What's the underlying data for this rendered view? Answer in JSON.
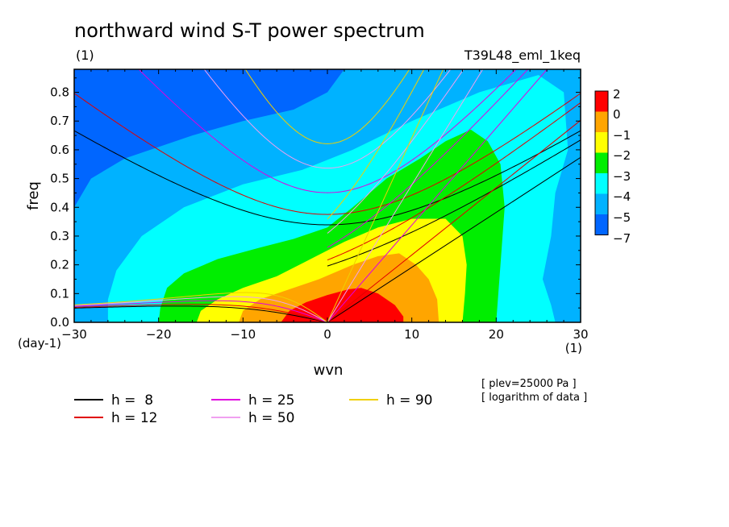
{
  "title": "northward wind S-T power spectrum",
  "subtitle_left": "(1)",
  "subtitle_right": "T39L48_eml_1keq",
  "notes": [
    "[ plev=25000 Pa ]",
    "[ logarithm of data ]"
  ],
  "colors": {
    "levels": [
      "#ff0000",
      "#ffa500",
      "#ffff00",
      "#00ee00",
      "#00ffff",
      "#00b2ff",
      "#0066ff"
    ],
    "h8": "#000000",
    "h12": "#e00000",
    "h25": "#e000e0",
    "h50": "#f0a0f0",
    "h90": "#f0d000"
  },
  "chart_data": {
    "type": "heatmap",
    "title": "northward wind S-T power spectrum",
    "xlabel": "wvn",
    "ylabel": "freq",
    "x_unit": "(1)",
    "y_unit": "(day-1)",
    "xlim": [
      -30,
      30
    ],
    "ylim": [
      0,
      0.88
    ],
    "xticks": [
      -30,
      -20,
      -10,
      0,
      10,
      20,
      30
    ],
    "yticks": [
      0.0,
      0.1,
      0.2,
      0.3,
      0.4,
      0.5,
      0.6,
      0.7,
      0.8
    ],
    "ytick_labels": [
      "0.0",
      "0.1",
      "0.2",
      "0.3",
      "0.4",
      "0.5",
      "0.6",
      "0.7",
      "0.8"
    ],
    "colorbar": {
      "labels": [
        "2",
        "0",
        "−1",
        "−2",
        "−3",
        "−4",
        "−5",
        "−7"
      ],
      "colors": [
        "#ff0000",
        "#ffa500",
        "#ffff00",
        "#00ee00",
        "#00ffff",
        "#00b2ff",
        "#0066ff"
      ]
    },
    "contour_regions": [
      {
        "level": "0 to 2",
        "color": "#ff0000",
        "boundary": [
          [
            -5.5,
            0
          ],
          [
            -4.5,
            0.04
          ],
          [
            -2.5,
            0.07
          ],
          [
            0,
            0.095
          ],
          [
            2.5,
            0.115
          ],
          [
            4,
            0.12
          ],
          [
            6,
            0.1
          ],
          [
            8,
            0.06
          ],
          [
            9,
            0.02
          ],
          [
            9,
            0
          ]
        ]
      },
      {
        "level": "-1 to 0",
        "color": "#ffa500",
        "boundary": [
          [
            -10.5,
            0
          ],
          [
            -10,
            0.04
          ],
          [
            -8,
            0.08
          ],
          [
            -5,
            0.11
          ],
          [
            -1,
            0.15
          ],
          [
            3,
            0.2
          ],
          [
            6,
            0.23
          ],
          [
            8.5,
            0.24
          ],
          [
            10.5,
            0.2
          ],
          [
            12,
            0.15
          ],
          [
            13,
            0.08
          ],
          [
            13.2,
            0
          ]
        ]
      },
      {
        "level": "-2 to -1",
        "color": "#ffff00",
        "boundary": [
          [
            -15.5,
            0
          ],
          [
            -15,
            0.04
          ],
          [
            -13,
            0.08
          ],
          [
            -10,
            0.12
          ],
          [
            -6,
            0.16
          ],
          [
            -2,
            0.22
          ],
          [
            2,
            0.28
          ],
          [
            6,
            0.33
          ],
          [
            10,
            0.36
          ],
          [
            14,
            0.36
          ],
          [
            16,
            0.3
          ],
          [
            16.5,
            0.2
          ],
          [
            16.3,
            0.1
          ],
          [
            16,
            0
          ]
        ]
      },
      {
        "level": "-3 to -2",
        "color": "#00ee00",
        "boundary": [
          [
            -20,
            0
          ],
          [
            -19.8,
            0.05
          ],
          [
            -19,
            0.12
          ],
          [
            -17,
            0.17
          ],
          [
            -13,
            0.22
          ],
          [
            -8,
            0.26
          ],
          [
            -4,
            0.29
          ],
          [
            0,
            0.33
          ],
          [
            3,
            0.4
          ],
          [
            7,
            0.5
          ],
          [
            11,
            0.57
          ],
          [
            14,
            0.63
          ],
          [
            17,
            0.67
          ],
          [
            19,
            0.63
          ],
          [
            20.5,
            0.55
          ],
          [
            21,
            0.4
          ],
          [
            20.5,
            0.2
          ],
          [
            20,
            0
          ]
        ]
      },
      {
        "level": "-4 to -3",
        "color": "#00ffff",
        "boundary": [
          [
            -26,
            0
          ],
          [
            -26,
            0.08
          ],
          [
            -25,
            0.18
          ],
          [
            -22,
            0.3
          ],
          [
            -17,
            0.4
          ],
          [
            -10,
            0.48
          ],
          [
            -3,
            0.53
          ],
          [
            3,
            0.6
          ],
          [
            10,
            0.7
          ],
          [
            18,
            0.8
          ],
          [
            25,
            0.86
          ],
          [
            28,
            0.8
          ],
          [
            28.5,
            0.6
          ],
          [
            27,
            0.45
          ],
          [
            26.5,
            0.3
          ],
          [
            25.5,
            0.15
          ],
          [
            26.5,
            0.06
          ],
          [
            27,
            0
          ]
        ]
      },
      {
        "level": "-5 to -4",
        "color": "#00b2ff",
        "boundary": [
          [
            -30,
            0
          ],
          [
            -30,
            0.4
          ],
          [
            -28,
            0.5
          ],
          [
            -24,
            0.57
          ],
          [
            -16,
            0.65
          ],
          [
            -10,
            0.7
          ],
          [
            -4,
            0.74
          ],
          [
            0,
            0.8
          ],
          [
            2,
            0.88
          ],
          [
            30,
            0.88
          ],
          [
            30,
            0
          ]
        ]
      }
    ],
    "dispersion_curve_sets": [
      {
        "name": "h = 8",
        "h": 8,
        "color": "#000000"
      },
      {
        "name": "h = 12",
        "h": 12,
        "color": "#e00000"
      },
      {
        "name": "h = 25",
        "h": 25,
        "color": "#e000e0"
      },
      {
        "name": "h = 50",
        "h": 50,
        "color": "#f0a0f0"
      },
      {
        "name": "h = 90",
        "h": 90,
        "color": "#f0d000"
      }
    ]
  },
  "legend": [
    {
      "label": "h =  8",
      "color": "#000000"
    },
    {
      "label": "h = 12",
      "color": "#e00000"
    },
    {
      "label": "h = 25",
      "color": "#e000e0"
    },
    {
      "label": "h = 50",
      "color": "#f0a0f0"
    },
    {
      "label": "h = 90",
      "color": "#f0d000"
    }
  ]
}
